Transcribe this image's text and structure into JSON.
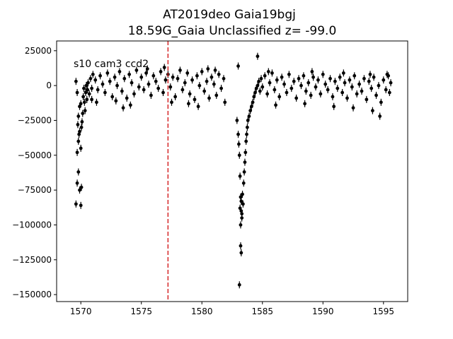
{
  "chart_data": {
    "type": "scatter",
    "title": "AT2019deo  Gaia19bgj",
    "subtitle": "18.59G_Gaia Unclassified z= -99.0",
    "xlabel": "",
    "ylabel": "",
    "xlim": [
      1568.0,
      1597.0
    ],
    "ylim": [
      -155000,
      32000
    ],
    "x_ticks": [
      1570,
      1575,
      1580,
      1585,
      1590,
      1595
    ],
    "x_tick_labels": [
      "1570",
      "1575",
      "1580",
      "1585",
      "1590",
      "1595"
    ],
    "y_ticks": [
      25000,
      0,
      -25000,
      -50000,
      -75000,
      -100000,
      -125000,
      -150000
    ],
    "y_tick_labels": [
      "25000",
      "0",
      "−25000",
      "−50000",
      "−75000",
      "−100000",
      "−125000",
      "−150000"
    ],
    "annotation": "s10 cam3 ccd2",
    "vline": {
      "x": 1577.2,
      "color": "#d62728",
      "style": "dashed"
    },
    "marker_color": "#000000",
    "grid": false,
    "series": [
      {
        "points": [
          [
            1569.6,
            -85000
          ],
          [
            1569.7,
            -70000
          ],
          [
            1569.8,
            -62000
          ],
          [
            1569.9,
            -75000
          ],
          [
            1570.0,
            -86000
          ],
          [
            1570.05,
            -73000
          ],
          [
            1569.7,
            -48000
          ],
          [
            1569.8,
            -40000
          ],
          [
            1569.9,
            -33000
          ],
          [
            1569.75,
            -28000
          ],
          [
            1569.85,
            -35000
          ],
          [
            1570.0,
            -45000
          ],
          [
            1570.05,
            -30000
          ],
          [
            1569.8,
            -22000
          ],
          [
            1569.9,
            -15000
          ],
          [
            1570.0,
            -13000
          ],
          [
            1569.6,
            3000
          ],
          [
            1569.7,
            -5000
          ],
          [
            1570.1,
            -26000
          ],
          [
            1570.15,
            -20000
          ],
          [
            1570.2,
            -8000
          ],
          [
            1570.25,
            -2000
          ],
          [
            1570.3,
            -12000
          ],
          [
            1570.35,
            -18000
          ],
          [
            1570.4,
            -5000
          ],
          [
            1570.45,
            0
          ],
          [
            1570.5,
            -10000
          ],
          [
            1570.55,
            -3000
          ],
          [
            1570.6,
            2000
          ],
          [
            1570.7,
            -6000
          ],
          [
            1570.8,
            5000
          ],
          [
            1570.9,
            -2000
          ],
          [
            1571.0,
            8000
          ],
          [
            1571.2,
            4000
          ],
          [
            1571.4,
            -3000
          ],
          [
            1571.6,
            7000
          ],
          [
            1571.8,
            1000
          ],
          [
            1572.0,
            -5000
          ],
          [
            1572.2,
            9000
          ],
          [
            1572.4,
            3000
          ],
          [
            1572.6,
            -8000
          ],
          [
            1572.8,
            6000
          ],
          [
            1573.0,
            0
          ],
          [
            1573.2,
            10000
          ],
          [
            1573.4,
            -4000
          ],
          [
            1573.6,
            5000
          ],
          [
            1573.8,
            -9000
          ],
          [
            1574.0,
            8000
          ],
          [
            1574.2,
            2000
          ],
          [
            1574.4,
            -6000
          ],
          [
            1574.6,
            11000
          ],
          [
            1574.8,
            -1000
          ],
          [
            1575.0,
            6000
          ],
          [
            1575.2,
            -3000
          ],
          [
            1575.4,
            9000
          ],
          [
            1575.6,
            1000
          ],
          [
            1575.8,
            -7000
          ],
          [
            1576.0,
            7000
          ],
          [
            1576.2,
            3000
          ],
          [
            1576.4,
            -2000
          ],
          [
            1576.6,
            10000
          ],
          [
            1576.8,
            -5000
          ],
          [
            1577.0,
            4000
          ],
          [
            1577.2,
            8000
          ],
          [
            1577.4,
            -1000
          ],
          [
            1577.6,
            6000
          ],
          [
            1577.8,
            -8000
          ],
          [
            1578.0,
            5000
          ],
          [
            1578.2,
            11000
          ],
          [
            1578.4,
            -3000
          ],
          [
            1578.6,
            2000
          ],
          [
            1578.8,
            9000
          ],
          [
            1579.0,
            -6000
          ],
          [
            1579.2,
            4000
          ],
          [
            1579.4,
            -10000
          ],
          [
            1579.6,
            7000
          ],
          [
            1579.8,
            0
          ],
          [
            1580.0,
            10000
          ],
          [
            1580.2,
            -4000
          ],
          [
            1580.4,
            3000
          ],
          [
            1580.6,
            -9000
          ],
          [
            1580.8,
            6000
          ],
          [
            1581.0,
            1000
          ],
          [
            1581.2,
            -7000
          ],
          [
            1581.4,
            8000
          ],
          [
            1581.6,
            -2000
          ],
          [
            1581.8,
            5000
          ],
          [
            1581.9,
            -12000
          ],
          [
            1571.3,
            -12000
          ],
          [
            1572.9,
            -11000
          ],
          [
            1574.1,
            -14000
          ],
          [
            1575.5,
            12000
          ],
          [
            1576.9,
            13000
          ],
          [
            1578.9,
            -13000
          ],
          [
            1580.5,
            12000
          ],
          [
            1573.5,
            -16000
          ],
          [
            1579.7,
            -15000
          ],
          [
            1570.9,
            -10000
          ],
          [
            1577.5,
            -12000
          ],
          [
            1581.1,
            11000
          ],
          [
            1582.9,
            -25000
          ],
          [
            1583.0,
            -35000
          ],
          [
            1583.05,
            -42000
          ],
          [
            1583.1,
            -50000
          ],
          [
            1583.15,
            -65000
          ],
          [
            1583.2,
            -80000
          ],
          [
            1583.25,
            -90000
          ],
          [
            1583.3,
            -95000
          ],
          [
            1583.2,
            -100000
          ],
          [
            1583.15,
            -88000
          ],
          [
            1583.25,
            -83000
          ],
          [
            1583.35,
            -78000
          ],
          [
            1583.3,
            -92000
          ],
          [
            1583.4,
            -85000
          ],
          [
            1583.45,
            -70000
          ],
          [
            1583.5,
            -62000
          ],
          [
            1583.55,
            -55000
          ],
          [
            1583.6,
            -48000
          ],
          [
            1583.65,
            -40000
          ],
          [
            1583.7,
            -35000
          ],
          [
            1583.75,
            -30000
          ],
          [
            1583.8,
            -25000
          ],
          [
            1583.2,
            -115000
          ],
          [
            1583.25,
            -120000
          ],
          [
            1583.1,
            -143000
          ],
          [
            1583.0,
            14000
          ],
          [
            1584.6,
            21000
          ],
          [
            1583.9,
            -22000
          ],
          [
            1584.0,
            -18000
          ],
          [
            1584.1,
            -15000
          ],
          [
            1584.2,
            -12000
          ],
          [
            1584.3,
            -8000
          ],
          [
            1584.4,
            -5000
          ],
          [
            1584.5,
            -2000
          ],
          [
            1584.6,
            0
          ],
          [
            1584.7,
            3000
          ],
          [
            1584.8,
            -4000
          ],
          [
            1584.9,
            5000
          ],
          [
            1585.0,
            -1000
          ],
          [
            1585.2,
            7000
          ],
          [
            1585.4,
            -6000
          ],
          [
            1585.6,
            2000
          ],
          [
            1585.8,
            9000
          ],
          [
            1586.0,
            -3000
          ],
          [
            1586.2,
            4000
          ],
          [
            1586.4,
            -8000
          ],
          [
            1586.6,
            6000
          ],
          [
            1586.8,
            1000
          ],
          [
            1587.0,
            -5000
          ],
          [
            1587.2,
            8000
          ],
          [
            1587.4,
            -2000
          ],
          [
            1587.6,
            3000
          ],
          [
            1587.8,
            -9000
          ],
          [
            1588.0,
            5000
          ],
          [
            1588.2,
            0
          ],
          [
            1588.4,
            7000
          ],
          [
            1588.6,
            -4000
          ],
          [
            1588.8,
            2000
          ],
          [
            1589.0,
            -7000
          ],
          [
            1589.2,
            6000
          ],
          [
            1589.4,
            -1000
          ],
          [
            1589.6,
            4000
          ],
          [
            1589.8,
            -6000
          ],
          [
            1590.0,
            8000
          ],
          [
            1590.2,
            1000
          ],
          [
            1590.4,
            -3000
          ],
          [
            1590.6,
            5000
          ],
          [
            1590.8,
            -8000
          ],
          [
            1591.0,
            3000
          ],
          [
            1591.2,
            -2000
          ],
          [
            1591.4,
            6000
          ],
          [
            1591.6,
            -5000
          ],
          [
            1591.8,
            2000
          ],
          [
            1592.0,
            -9000
          ],
          [
            1592.2,
            4000
          ],
          [
            1592.4,
            -1000
          ],
          [
            1592.6,
            7000
          ],
          [
            1592.8,
            -6000
          ],
          [
            1593.0,
            1000
          ],
          [
            1593.2,
            -4000
          ],
          [
            1593.4,
            5000
          ],
          [
            1593.6,
            -10000
          ],
          [
            1593.8,
            3000
          ],
          [
            1594.0,
            -2000
          ],
          [
            1594.2,
            6000
          ],
          [
            1594.4,
            -7000
          ],
          [
            1594.6,
            0
          ],
          [
            1594.8,
            -12000
          ],
          [
            1595.0,
            4000
          ],
          [
            1595.2,
            -3000
          ],
          [
            1595.4,
            7000
          ],
          [
            1595.5,
            -5000
          ],
          [
            1595.6,
            2000
          ],
          [
            1586.1,
            -14000
          ],
          [
            1588.5,
            -13000
          ],
          [
            1590.9,
            -15000
          ],
          [
            1592.5,
            -16000
          ],
          [
            1594.1,
            -18000
          ],
          [
            1594.7,
            -22000
          ],
          [
            1585.5,
            10000
          ],
          [
            1589.1,
            10000
          ],
          [
            1591.7,
            9000
          ],
          [
            1593.9,
            8000
          ],
          [
            1595.3,
            8000
          ]
        ]
      }
    ]
  }
}
